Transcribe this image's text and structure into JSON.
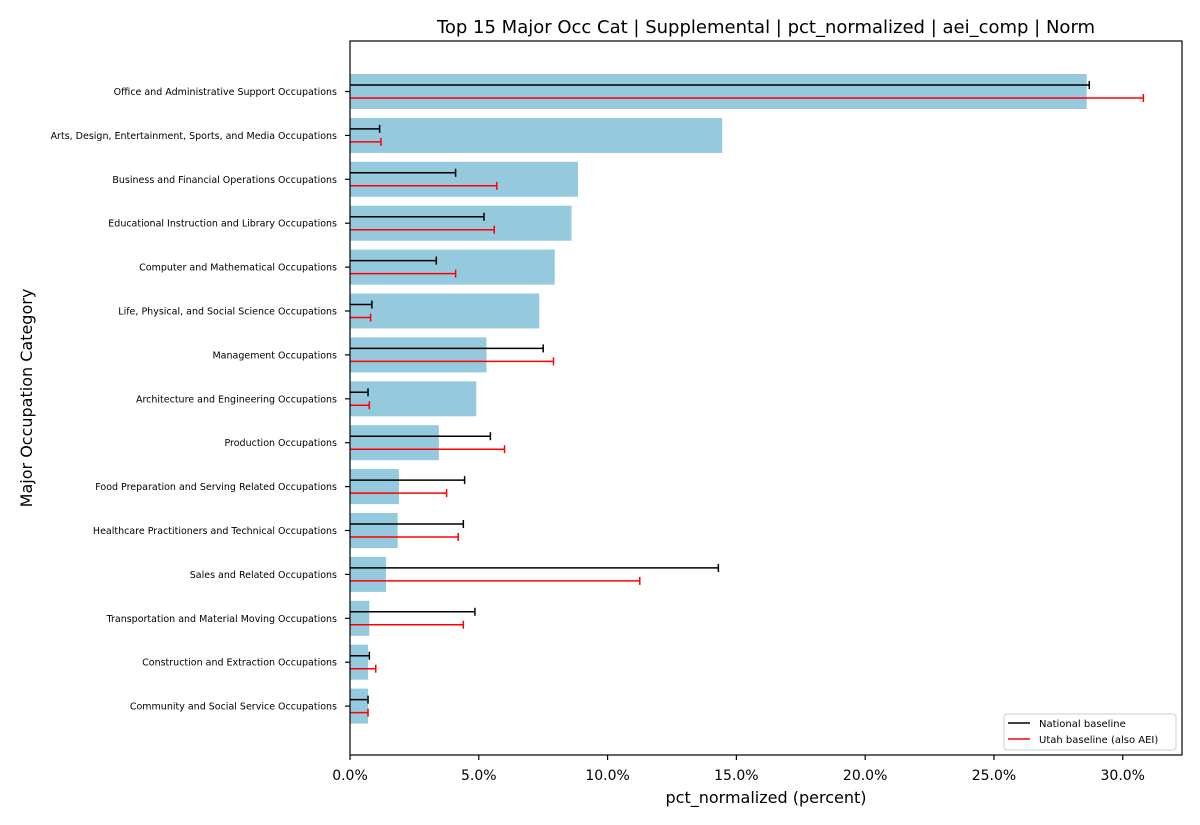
{
  "chart_data": {
    "type": "bar",
    "orientation": "horizontal",
    "title": "Top 15 Major Occ Cat | Supplemental | pct_normalized | aei_comp | Norm",
    "xlabel": "pct_normalized (percent)",
    "ylabel": "Major Occupation Category",
    "xlim": [
      0,
      32.3
    ],
    "xticks": [
      0,
      5,
      10,
      15,
      20,
      25,
      30
    ],
    "xtick_labels": [
      "0.0%",
      "5.0%",
      "10.0%",
      "15.0%",
      "20.0%",
      "25.0%",
      "30.0%"
    ],
    "grid": false,
    "legend_position": "bottom-right",
    "colors": {
      "bar": "#94c9de",
      "national": "#000000",
      "utah": "#ff0000"
    },
    "categories": [
      "Office and Administrative Support Occupations",
      "Arts, Design, Entertainment, Sports, and Media Occupations",
      "Business and Financial Operations Occupations",
      "Educational Instruction and Library Occupations",
      "Computer and Mathematical Occupations",
      "Life, Physical, and Social Science Occupations",
      "Management Occupations",
      "Architecture and Engineering Occupations",
      "Production Occupations",
      "Food Preparation and Serving Related Occupations",
      "Healthcare Practitioners and Technical Occupations",
      "Sales and Related Occupations",
      "Transportation and Material Moving Occupations",
      "Construction and Extraction Occupations",
      "Community and Social Service Occupations"
    ],
    "values": [
      28.6,
      14.45,
      8.85,
      8.6,
      7.95,
      7.35,
      5.3,
      4.9,
      3.45,
      1.9,
      1.85,
      1.4,
      0.75,
      0.7,
      0.7
    ],
    "series": [
      {
        "name": "National baseline",
        "values": [
          28.7,
          1.15,
          4.1,
          5.2,
          3.35,
          0.85,
          7.5,
          0.7,
          5.45,
          4.45,
          4.4,
          14.3,
          4.85,
          0.75,
          0.7
        ]
      },
      {
        "name": "Utah baseline (also AEI)",
        "values": [
          30.8,
          1.2,
          5.7,
          5.6,
          4.1,
          0.8,
          7.9,
          0.75,
          6.0,
          3.75,
          4.2,
          11.25,
          4.4,
          1.0,
          0.7
        ]
      }
    ]
  }
}
